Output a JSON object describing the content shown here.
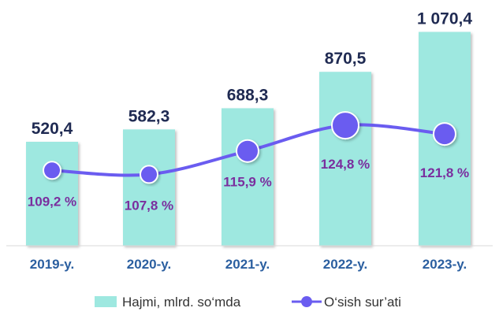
{
  "chart_data": {
    "type": "bar",
    "categories": [
      "2019-y.",
      "2020-y.",
      "2021-y.",
      "2022-y.",
      "2023-y."
    ],
    "series": [
      {
        "name": "Hajmi, mlrd. so‘mda",
        "type": "bar",
        "values": [
          520.4,
          582.3,
          688.3,
          870.5,
          1070.4
        ],
        "labels": [
          "520,4",
          "582,3",
          "688,3",
          "870,5",
          "1 070,4"
        ]
      },
      {
        "name": "O‘sish sur’ati",
        "type": "line",
        "values": [
          109.2,
          107.8,
          115.9,
          124.8,
          121.8
        ],
        "labels": [
          "109,2 %",
          "107,8 %",
          "115,9 %",
          "124,8 %",
          "121,8 %"
        ]
      }
    ],
    "title": "",
    "xlabel": "",
    "ylabel": "",
    "ylim": [
      0,
      1100
    ],
    "grid": false,
    "legend": "bottom",
    "colors": {
      "bar": "#9ee8e0",
      "line": "#6a5cf0",
      "marker": "#6a5cf0",
      "value_label": "#1f2a52",
      "percent_label": "#7a2e9e",
      "tick_label": "#2b5fa0"
    }
  }
}
